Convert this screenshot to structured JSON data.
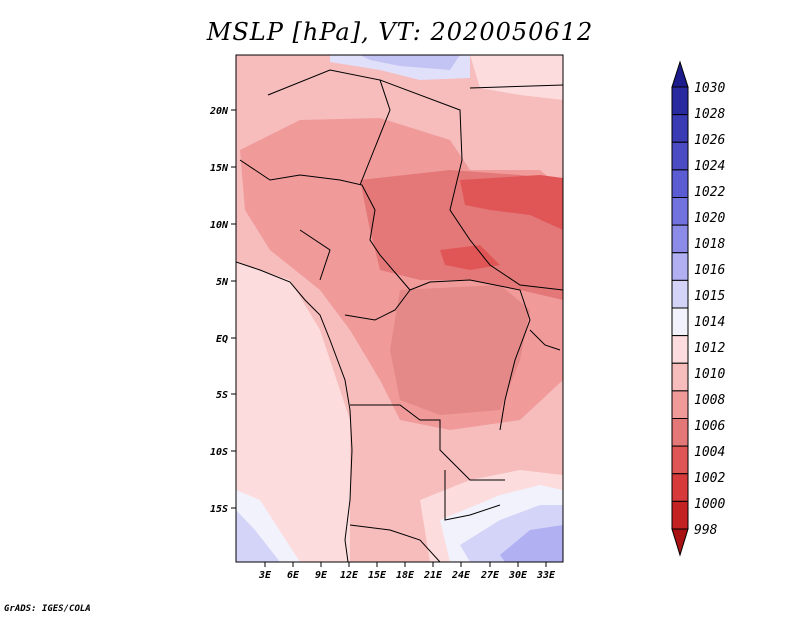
{
  "title": "MSLP [hPa], VT: 2020050612",
  "credit": "GrADS: IGES/COLA",
  "map": {
    "lat_labels": [
      "20N",
      "15N",
      "10N",
      "5N",
      "EQ",
      "5S",
      "10S",
      "15S"
    ],
    "lon_labels": [
      "3E",
      "6E",
      "9E",
      "12E",
      "15E",
      "18E",
      "21E",
      "24E",
      "27E",
      "30E",
      "33E"
    ]
  },
  "colorbar": {
    "levels": [
      "1030",
      "1028",
      "1026",
      "1024",
      "1022",
      "1020",
      "1018",
      "1016",
      "1015",
      "1014",
      "1012",
      "1010",
      "1008",
      "1006",
      "1004",
      "1002",
      "1000",
      "998"
    ],
    "colors": [
      "#1c1c8c",
      "#2a2aa0",
      "#3a3ab4",
      "#4b4bc4",
      "#5c5cd2",
      "#7272de",
      "#8c8ce8",
      "#b0b0f2",
      "#d4d4f8",
      "#f2f2fc",
      "#fcdcdc",
      "#f7bcbc",
      "#f09a9a",
      "#e47878",
      "#e05656",
      "#d63a3a",
      "#c42222",
      "#a81212"
    ],
    "top_cap_color": "#1c1c8c",
    "bottom_cap_color": "#a81212"
  }
}
